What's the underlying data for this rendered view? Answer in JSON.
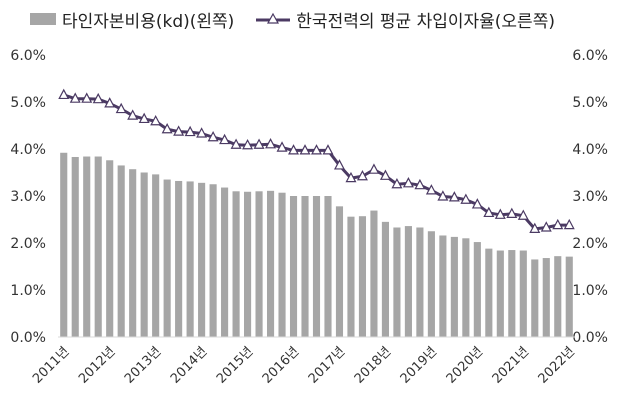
{
  "chart_data": {
    "type": "bar",
    "title": "",
    "colors": {
      "bars": "#a6a6a6",
      "line": "#4b3a63",
      "marker_fill": "#ffffff",
      "axis_text": "#333333"
    },
    "legend": {
      "position": "top",
      "bar_label": "타인자본비용(kd)(왼쪽)",
      "line_label": "한국전력의 평균 차입이자율(오른쪽)"
    },
    "grid": false,
    "y_left": {
      "min": 0,
      "max": 6,
      "ticks": [
        "0.0%",
        "1.0%",
        "2.0%",
        "3.0%",
        "4.0%",
        "5.0%",
        "6.0%"
      ]
    },
    "y_right": {
      "min": 0,
      "max": 6,
      "ticks": [
        "0.0%",
        "1.0%",
        "2.0%",
        "3.0%",
        "4.0%",
        "5.0%",
        "6.0%"
      ]
    },
    "x_labels": [
      "2011년",
      "2012년",
      "2013년",
      "2014년",
      "2015년",
      "2016년",
      "2017년",
      "2018년",
      "2019년",
      "2020년",
      "2021년",
      "2022년"
    ],
    "series": [
      {
        "name": "타인자본비용(kd)(왼쪽)",
        "type": "bar",
        "axis": "left",
        "values": [
          3.92,
          3.83,
          3.84,
          3.84,
          3.76,
          3.65,
          3.57,
          3.5,
          3.46,
          3.35,
          3.32,
          3.31,
          3.28,
          3.25,
          3.18,
          3.1,
          3.09,
          3.1,
          3.11,
          3.07,
          3.0,
          3.0,
          3.0,
          3.0,
          2.78,
          2.56,
          2.57,
          2.69,
          2.45,
          2.33,
          2.36,
          2.33,
          2.25,
          2.16,
          2.13,
          2.1,
          2.02,
          1.88,
          1.84,
          1.85,
          1.84,
          1.65,
          1.68,
          1.72,
          1.71
        ]
      },
      {
        "name": "한국전력의 평균 차입이자율(오른쪽)",
        "type": "line",
        "axis": "right",
        "values": [
          5.15,
          5.07,
          5.07,
          5.06,
          4.97,
          4.85,
          4.71,
          4.64,
          4.59,
          4.42,
          4.37,
          4.36,
          4.33,
          4.25,
          4.19,
          4.09,
          4.08,
          4.09,
          4.1,
          4.03,
          3.97,
          3.97,
          3.97,
          3.97,
          3.65,
          3.38,
          3.42,
          3.56,
          3.43,
          3.25,
          3.27,
          3.23,
          3.12,
          2.99,
          2.97,
          2.92,
          2.82,
          2.64,
          2.6,
          2.62,
          2.58,
          2.3,
          2.33,
          2.38,
          2.38
        ]
      }
    ]
  }
}
